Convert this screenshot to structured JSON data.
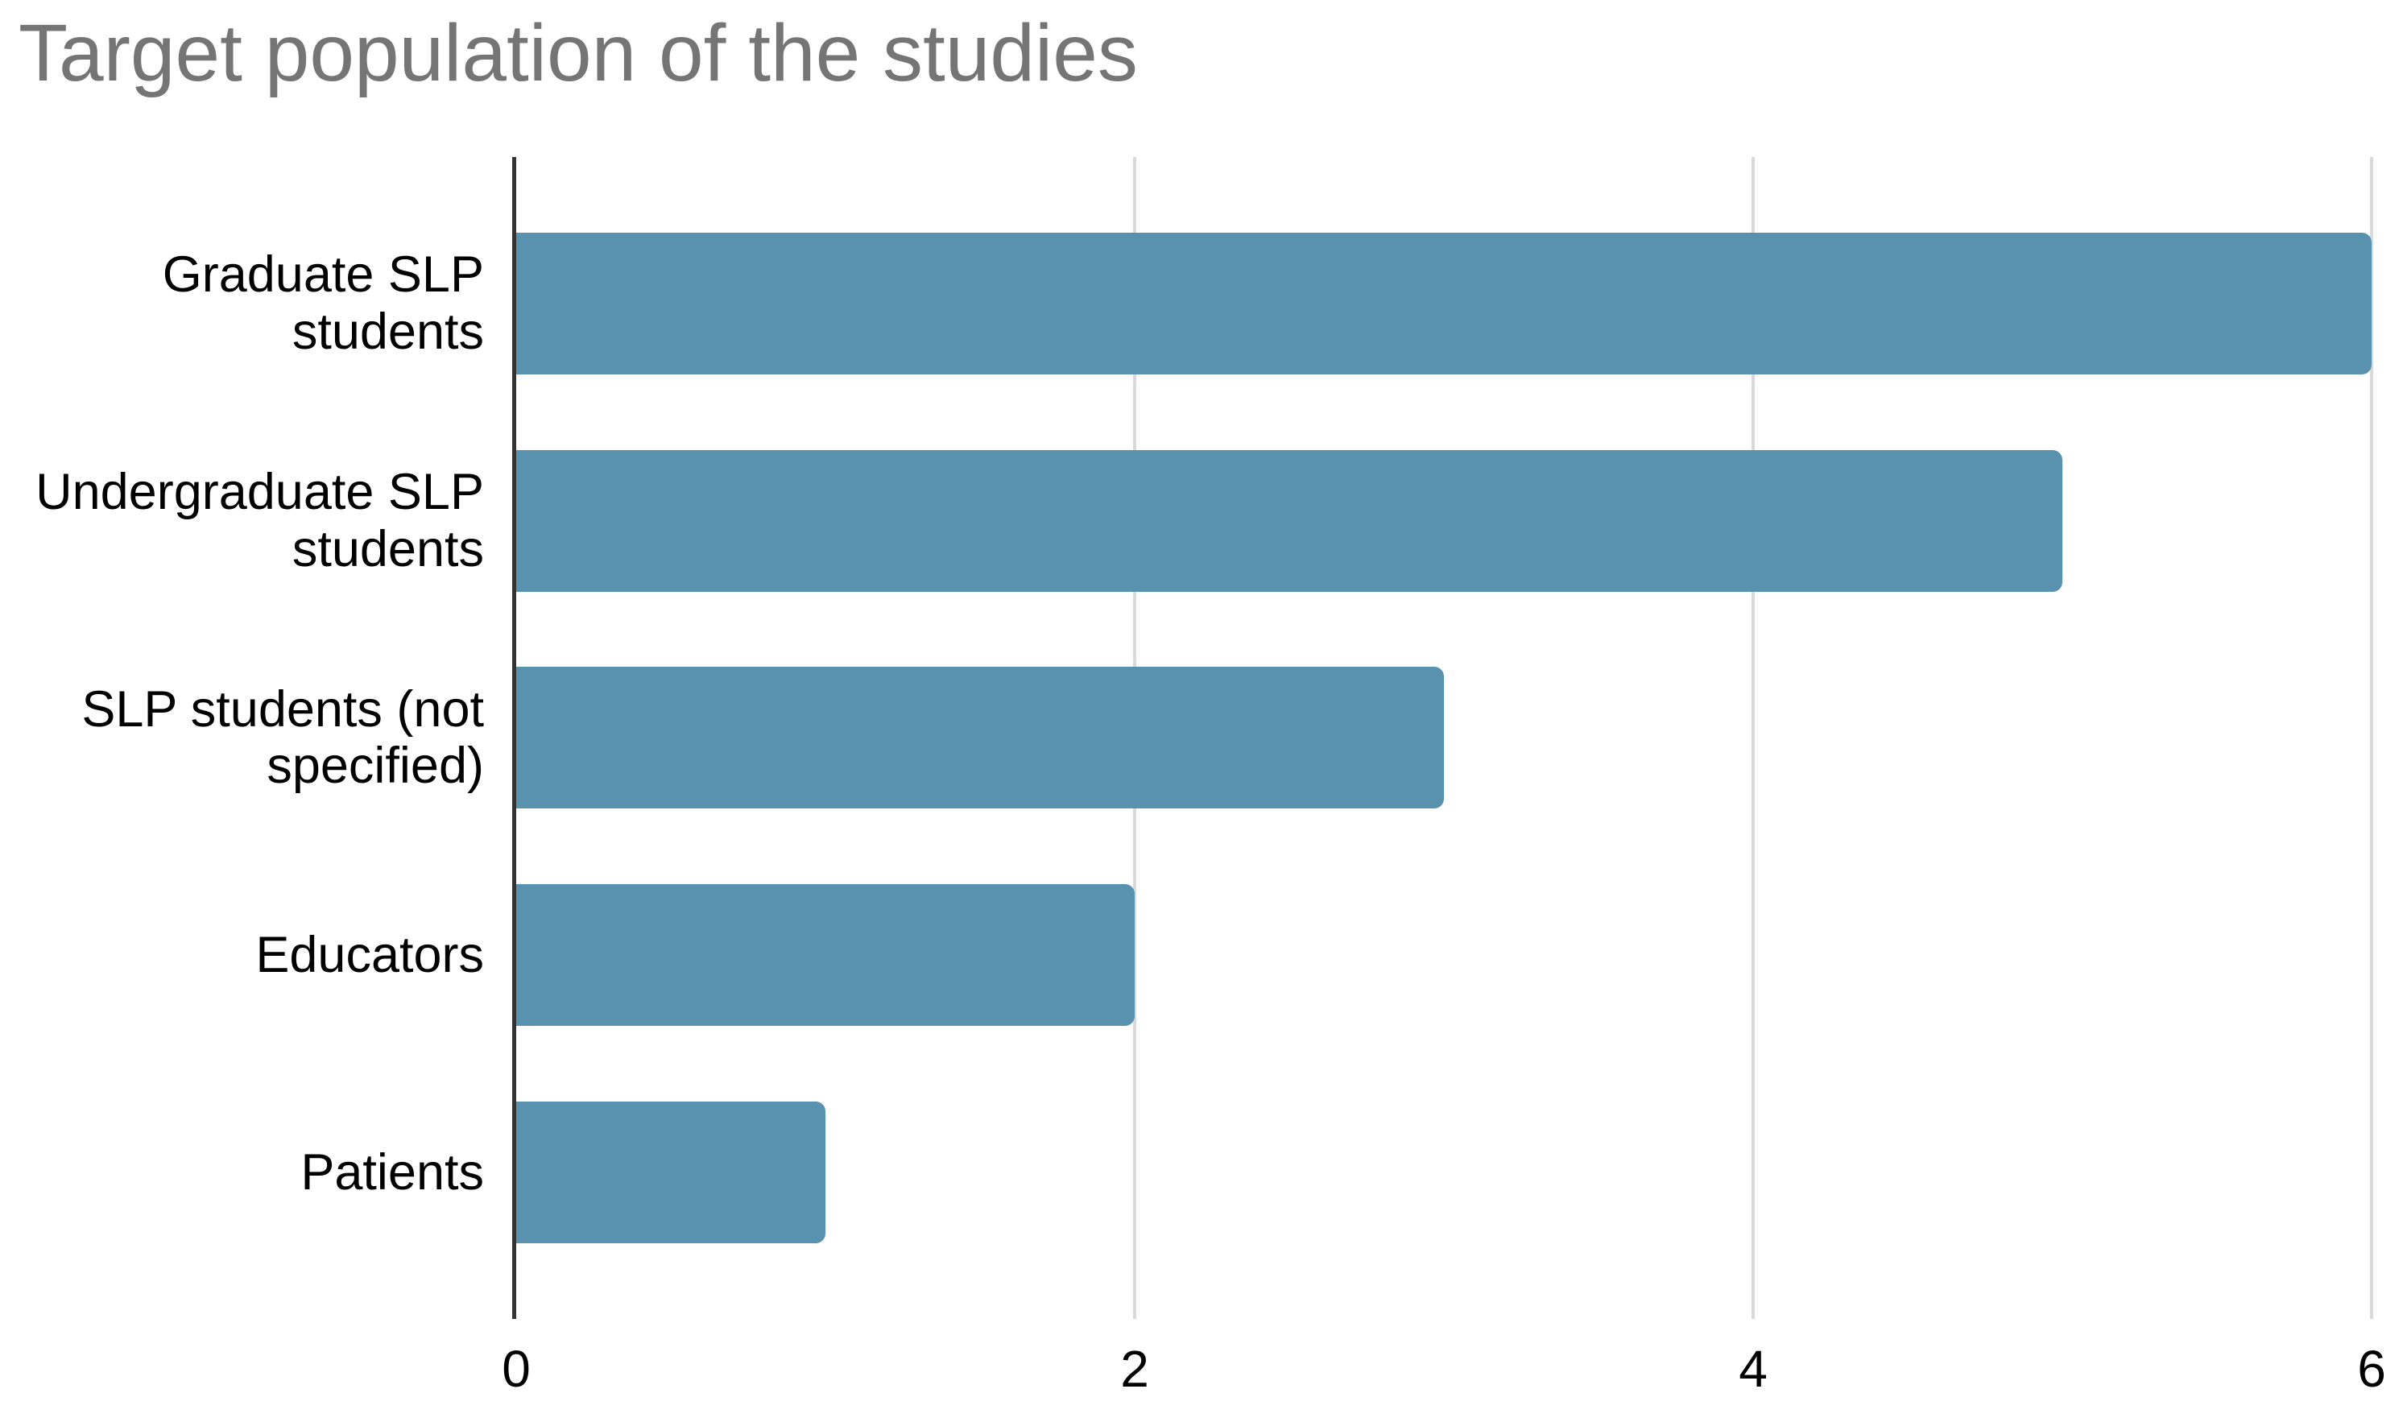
{
  "title": "Target population of the studies",
  "colors": {
    "bar": "#5892af",
    "title_text": "#757575",
    "axis_line": "#333333",
    "gridline": "#d9d9d9",
    "label_text": "#000000",
    "background": "#ffffff"
  },
  "chart_data": {
    "type": "bar",
    "orientation": "horizontal",
    "title": "Target population of the studies",
    "categories": [
      "Graduate SLP students",
      "Undergraduate SLP students",
      "SLP students (not specified)",
      "Educators",
      "Patients"
    ],
    "values": [
      6,
      5,
      3,
      2,
      1
    ],
    "xlabel": "",
    "ylabel": "",
    "xlim": [
      0,
      6
    ],
    "x_ticks": [
      0,
      2,
      4,
      6
    ],
    "grid": true,
    "legend": false
  }
}
